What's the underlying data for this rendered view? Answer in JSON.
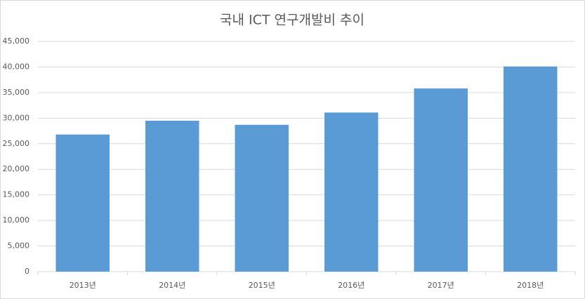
{
  "chart_data": {
    "type": "bar",
    "title": "국내 ICT 연구개발비 추이",
    "categories": [
      "2013년",
      "2014년",
      "2015년",
      "2016년",
      "2017년",
      "2018년"
    ],
    "values": [
      26800,
      29500,
      28700,
      31100,
      35800,
      40100
    ],
    "color": "#5b9bd5",
    "ylim": [
      0,
      45000
    ],
    "yticks": [
      0,
      {
        "value": 5000,
        "label": "5,000"
      },
      {
        "value": 10000,
        "label": "10,000"
      },
      {
        "value": 15000,
        "label": "15,000"
      },
      {
        "value": 20000,
        "label": "20,000"
      },
      {
        "value": 25000,
        "label": "25,000"
      },
      {
        "value": 30000,
        "label": "30,000"
      },
      {
        "value": 35000,
        "label": "35,000"
      },
      {
        "value": 40000,
        "label": "40,000"
      },
      {
        "value": 45000,
        "label": "45,000"
      }
    ],
    "grid": true
  }
}
